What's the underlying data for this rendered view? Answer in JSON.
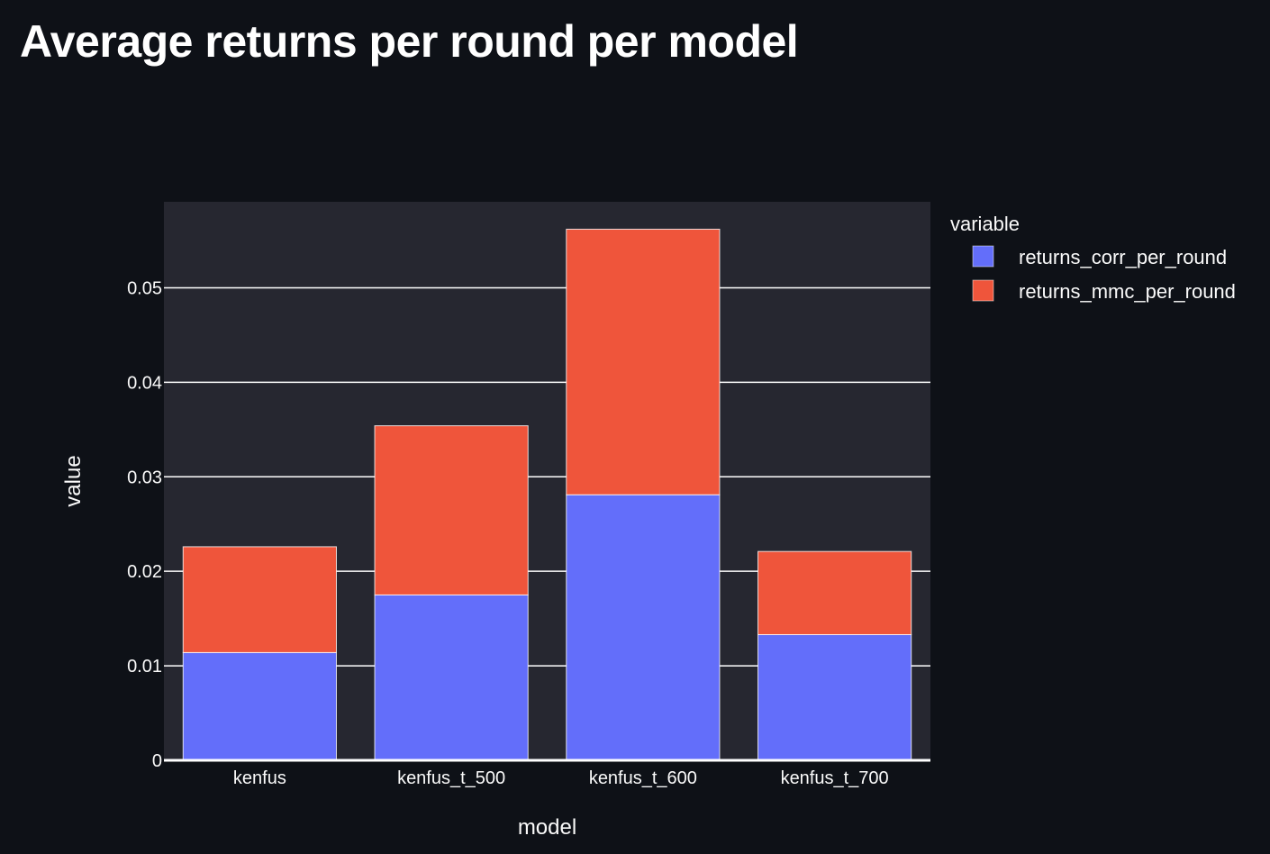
{
  "page": {
    "title": "Average returns per round per model"
  },
  "colors": {
    "background": "#0e1117",
    "plot_background": "#262730",
    "grid": "#ffffff",
    "text": "#fafafa",
    "bar_outline": "#ffffff"
  },
  "chart_data": {
    "type": "bar",
    "barmode": "stack",
    "title": "",
    "xlabel": "model",
    "ylabel": "value",
    "categories": [
      "kenfus",
      "kenfus_t_500",
      "kenfus_t_600",
      "kenfus_t_700"
    ],
    "series": [
      {
        "name": "returns_corr_per_round",
        "color": "#636efa",
        "values": [
          0.0114,
          0.0175,
          0.0281,
          0.0133
        ]
      },
      {
        "name": "returns_mmc_per_round",
        "color": "#ef553b",
        "values": [
          0.0112,
          0.0179,
          0.0281,
          0.0088
        ]
      }
    ],
    "ylim": [
      0,
      0.0591
    ],
    "yticks": [
      0,
      0.01,
      0.02,
      0.03,
      0.04,
      0.05
    ],
    "ytick_labels": [
      "0",
      "0.01",
      "0.02",
      "0.03",
      "0.04",
      "0.05"
    ],
    "grid": true,
    "legend": {
      "title": "variable",
      "placement": "right"
    }
  }
}
